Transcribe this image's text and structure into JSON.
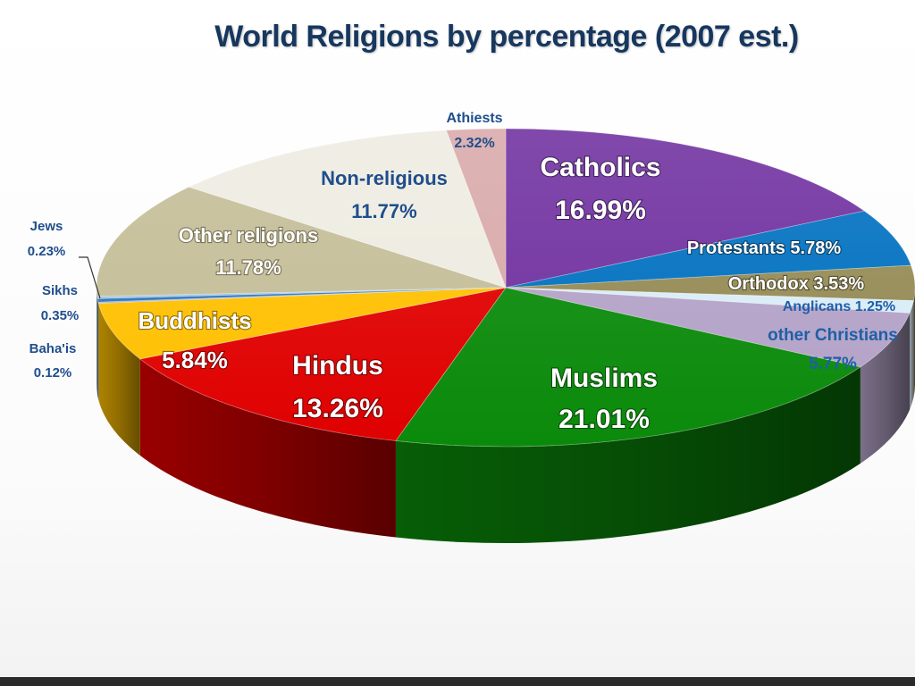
{
  "chart_data": {
    "type": "pie",
    "title": "World Religions by percentage (2007 est.)",
    "slices": [
      {
        "name": "Catholics",
        "value": 16.99,
        "label": "16.99%",
        "color": "#7030a0"
      },
      {
        "name": "Protestants",
        "value": 5.78,
        "label": "5.78%",
        "color": "#0070c0"
      },
      {
        "name": "Orthodox",
        "value": 3.53,
        "label": "3.53%",
        "color": "#948a54"
      },
      {
        "name": "Anglicans",
        "value": 1.25,
        "label": "1.25%",
        "color": "#d9ecf7"
      },
      {
        "name": "other Christians",
        "value": 5.77,
        "label": "5.77%",
        "color": "#b3a2c7"
      },
      {
        "name": "Muslims",
        "value": 21.01,
        "label": "21.01%",
        "color": "#0a8a0a"
      },
      {
        "name": "Hindus",
        "value": 13.26,
        "label": "13.26%",
        "color": "#e00000"
      },
      {
        "name": "Buddhists",
        "value": 5.84,
        "label": "5.84%",
        "color": "#ffc000"
      },
      {
        "name": "Baha'is",
        "value": 0.12,
        "label": "0.12%",
        "color": "#8faadc"
      },
      {
        "name": "Sikhs",
        "value": 0.35,
        "label": "0.35%",
        "color": "#2e75b6"
      },
      {
        "name": "Jews",
        "value": 0.23,
        "label": "0.23%",
        "color": "#9dc3e6"
      },
      {
        "name": "Other religions",
        "value": 11.78,
        "label": "11.78%",
        "color": "#c4bd97"
      },
      {
        "name": "Non-religious",
        "value": 11.77,
        "label": "11.77%",
        "color": "#eeece1"
      },
      {
        "name": "Athiests",
        "value": 2.32,
        "label": "2.32%",
        "color": "#d9a9a9"
      }
    ],
    "legend": "none"
  }
}
